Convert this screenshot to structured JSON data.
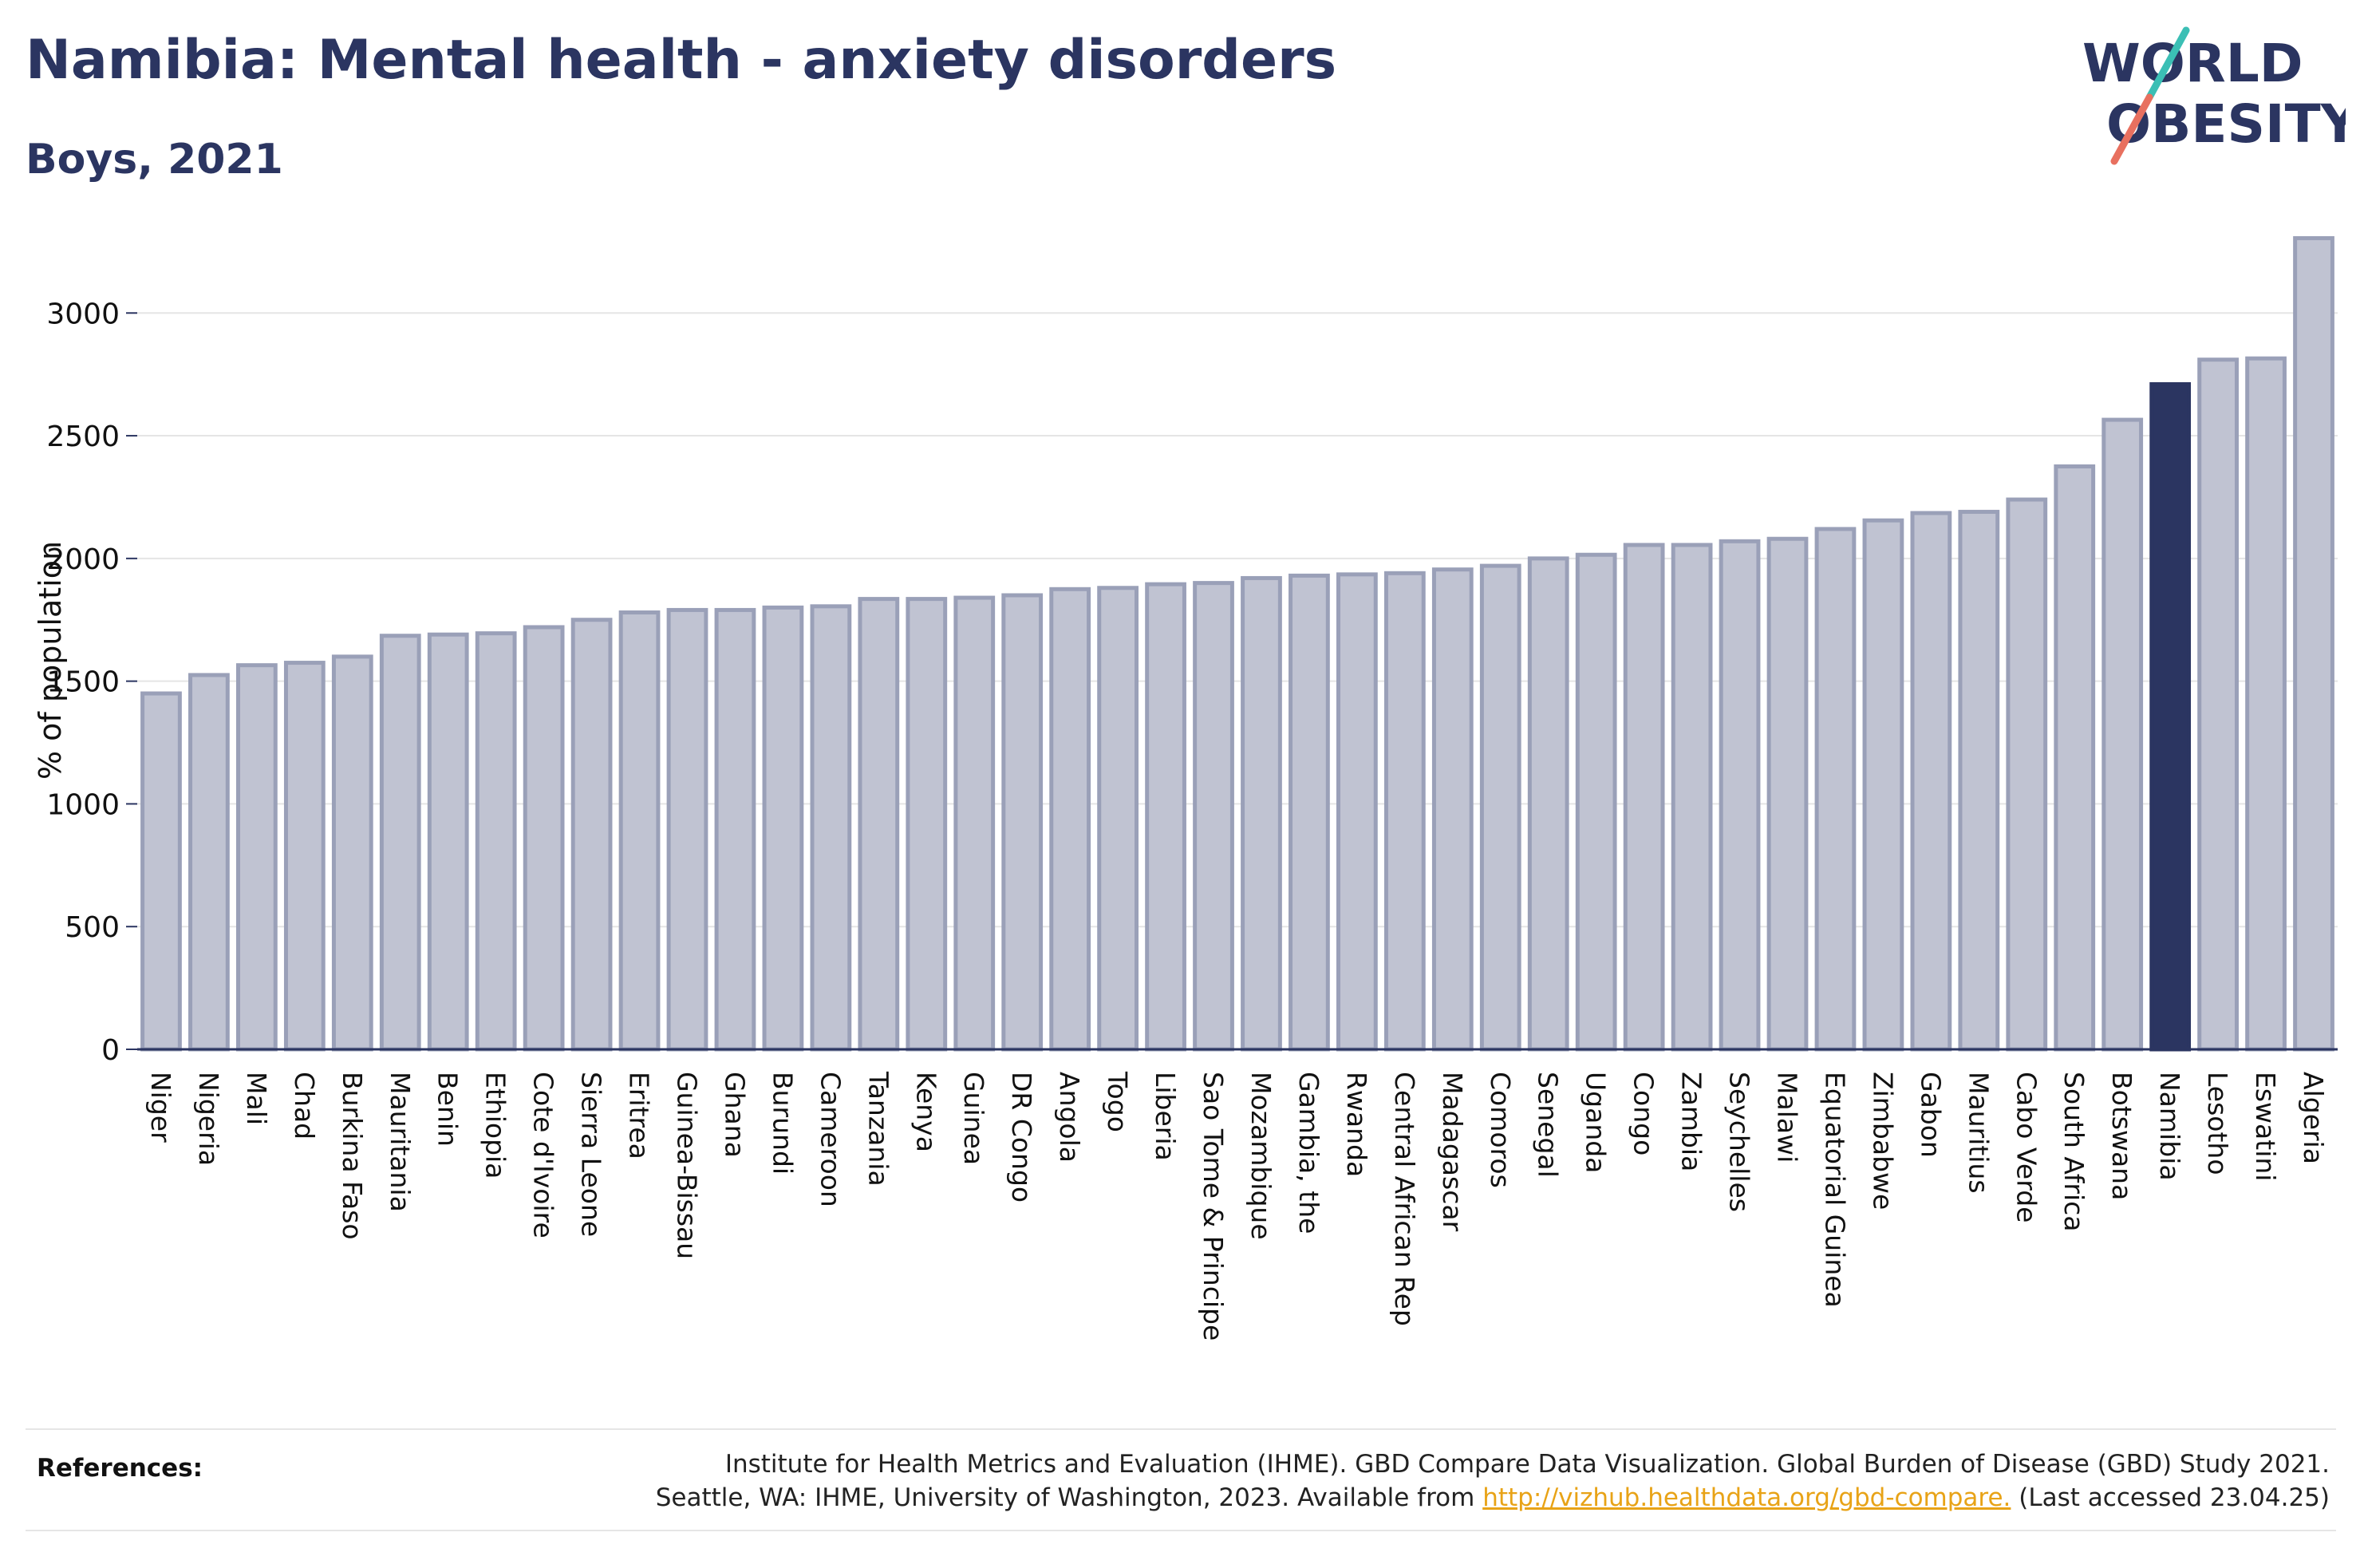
{
  "header": {
    "title": "Namibia: Mental health - anxiety disorders",
    "subtitle": "Boys, 2021"
  },
  "logo": {
    "line1": "WORLD",
    "line2": "OBESITY",
    "accent_teal": "#3bbfb5",
    "accent_red": "#e8705f"
  },
  "colors": {
    "bar": "#c0c3d2",
    "bar_stroke": "#9aa0b8",
    "highlight": "#2b3561",
    "text": "#2b3561"
  },
  "chart_data": {
    "type": "bar",
    "ylabel": "% of population",
    "ylim": [
      0,
      3300
    ],
    "yticks": [
      0,
      500,
      1000,
      1500,
      2000,
      2500,
      3000
    ],
    "highlight": "Namibia",
    "categories": [
      "Niger",
      "Nigeria",
      "Mali",
      "Chad",
      "Burkina Faso",
      "Mauritania",
      "Benin",
      "Ethiopia",
      "Cote d'Ivoire",
      "Sierra Leone",
      "Eritrea",
      "Guinea-Bissau",
      "Ghana",
      "Burundi",
      "Cameroon",
      "Tanzania",
      "Kenya",
      "Guinea",
      "DR Congo",
      "Angola",
      "Togo",
      "Liberia",
      "Sao Tome & Principe",
      "Mozambique",
      "Gambia, the",
      "Rwanda",
      "Central African Rep",
      "Madagascar",
      "Comoros",
      "Senegal",
      "Uganda",
      "Congo",
      "Zambia",
      "Seychelles",
      "Malawi",
      "Equatorial Guinea",
      "Zimbabwe",
      "Gabon",
      "Mauritius",
      "Cabo Verde",
      "South Africa",
      "Botswana",
      "Namibia",
      "Lesotho",
      "Eswatini",
      "Algeria"
    ],
    "values": [
      1450,
      1525,
      1565,
      1575,
      1600,
      1685,
      1690,
      1695,
      1720,
      1750,
      1780,
      1790,
      1790,
      1800,
      1805,
      1835,
      1835,
      1840,
      1850,
      1875,
      1880,
      1895,
      1900,
      1920,
      1930,
      1935,
      1940,
      1955,
      1970,
      2000,
      2015,
      2055,
      2055,
      2070,
      2080,
      2120,
      2155,
      2185,
      2190,
      2240,
      2375,
      2565,
      2710,
      2810,
      2815,
      3305
    ]
  },
  "references": {
    "label": "References:",
    "line1": "Institute for Health Metrics and Evaluation (IHME). GBD Compare Data Visualization. Global Burden of Disease (GBD) Study 2021.",
    "line2_prefix": "Seattle, WA: IHME, University of Washington, 2023. Available from ",
    "link": "http://vizhub.healthdata.org/gbd-compare.",
    "line2_suffix": " (Last accessed 23.04.25)"
  }
}
